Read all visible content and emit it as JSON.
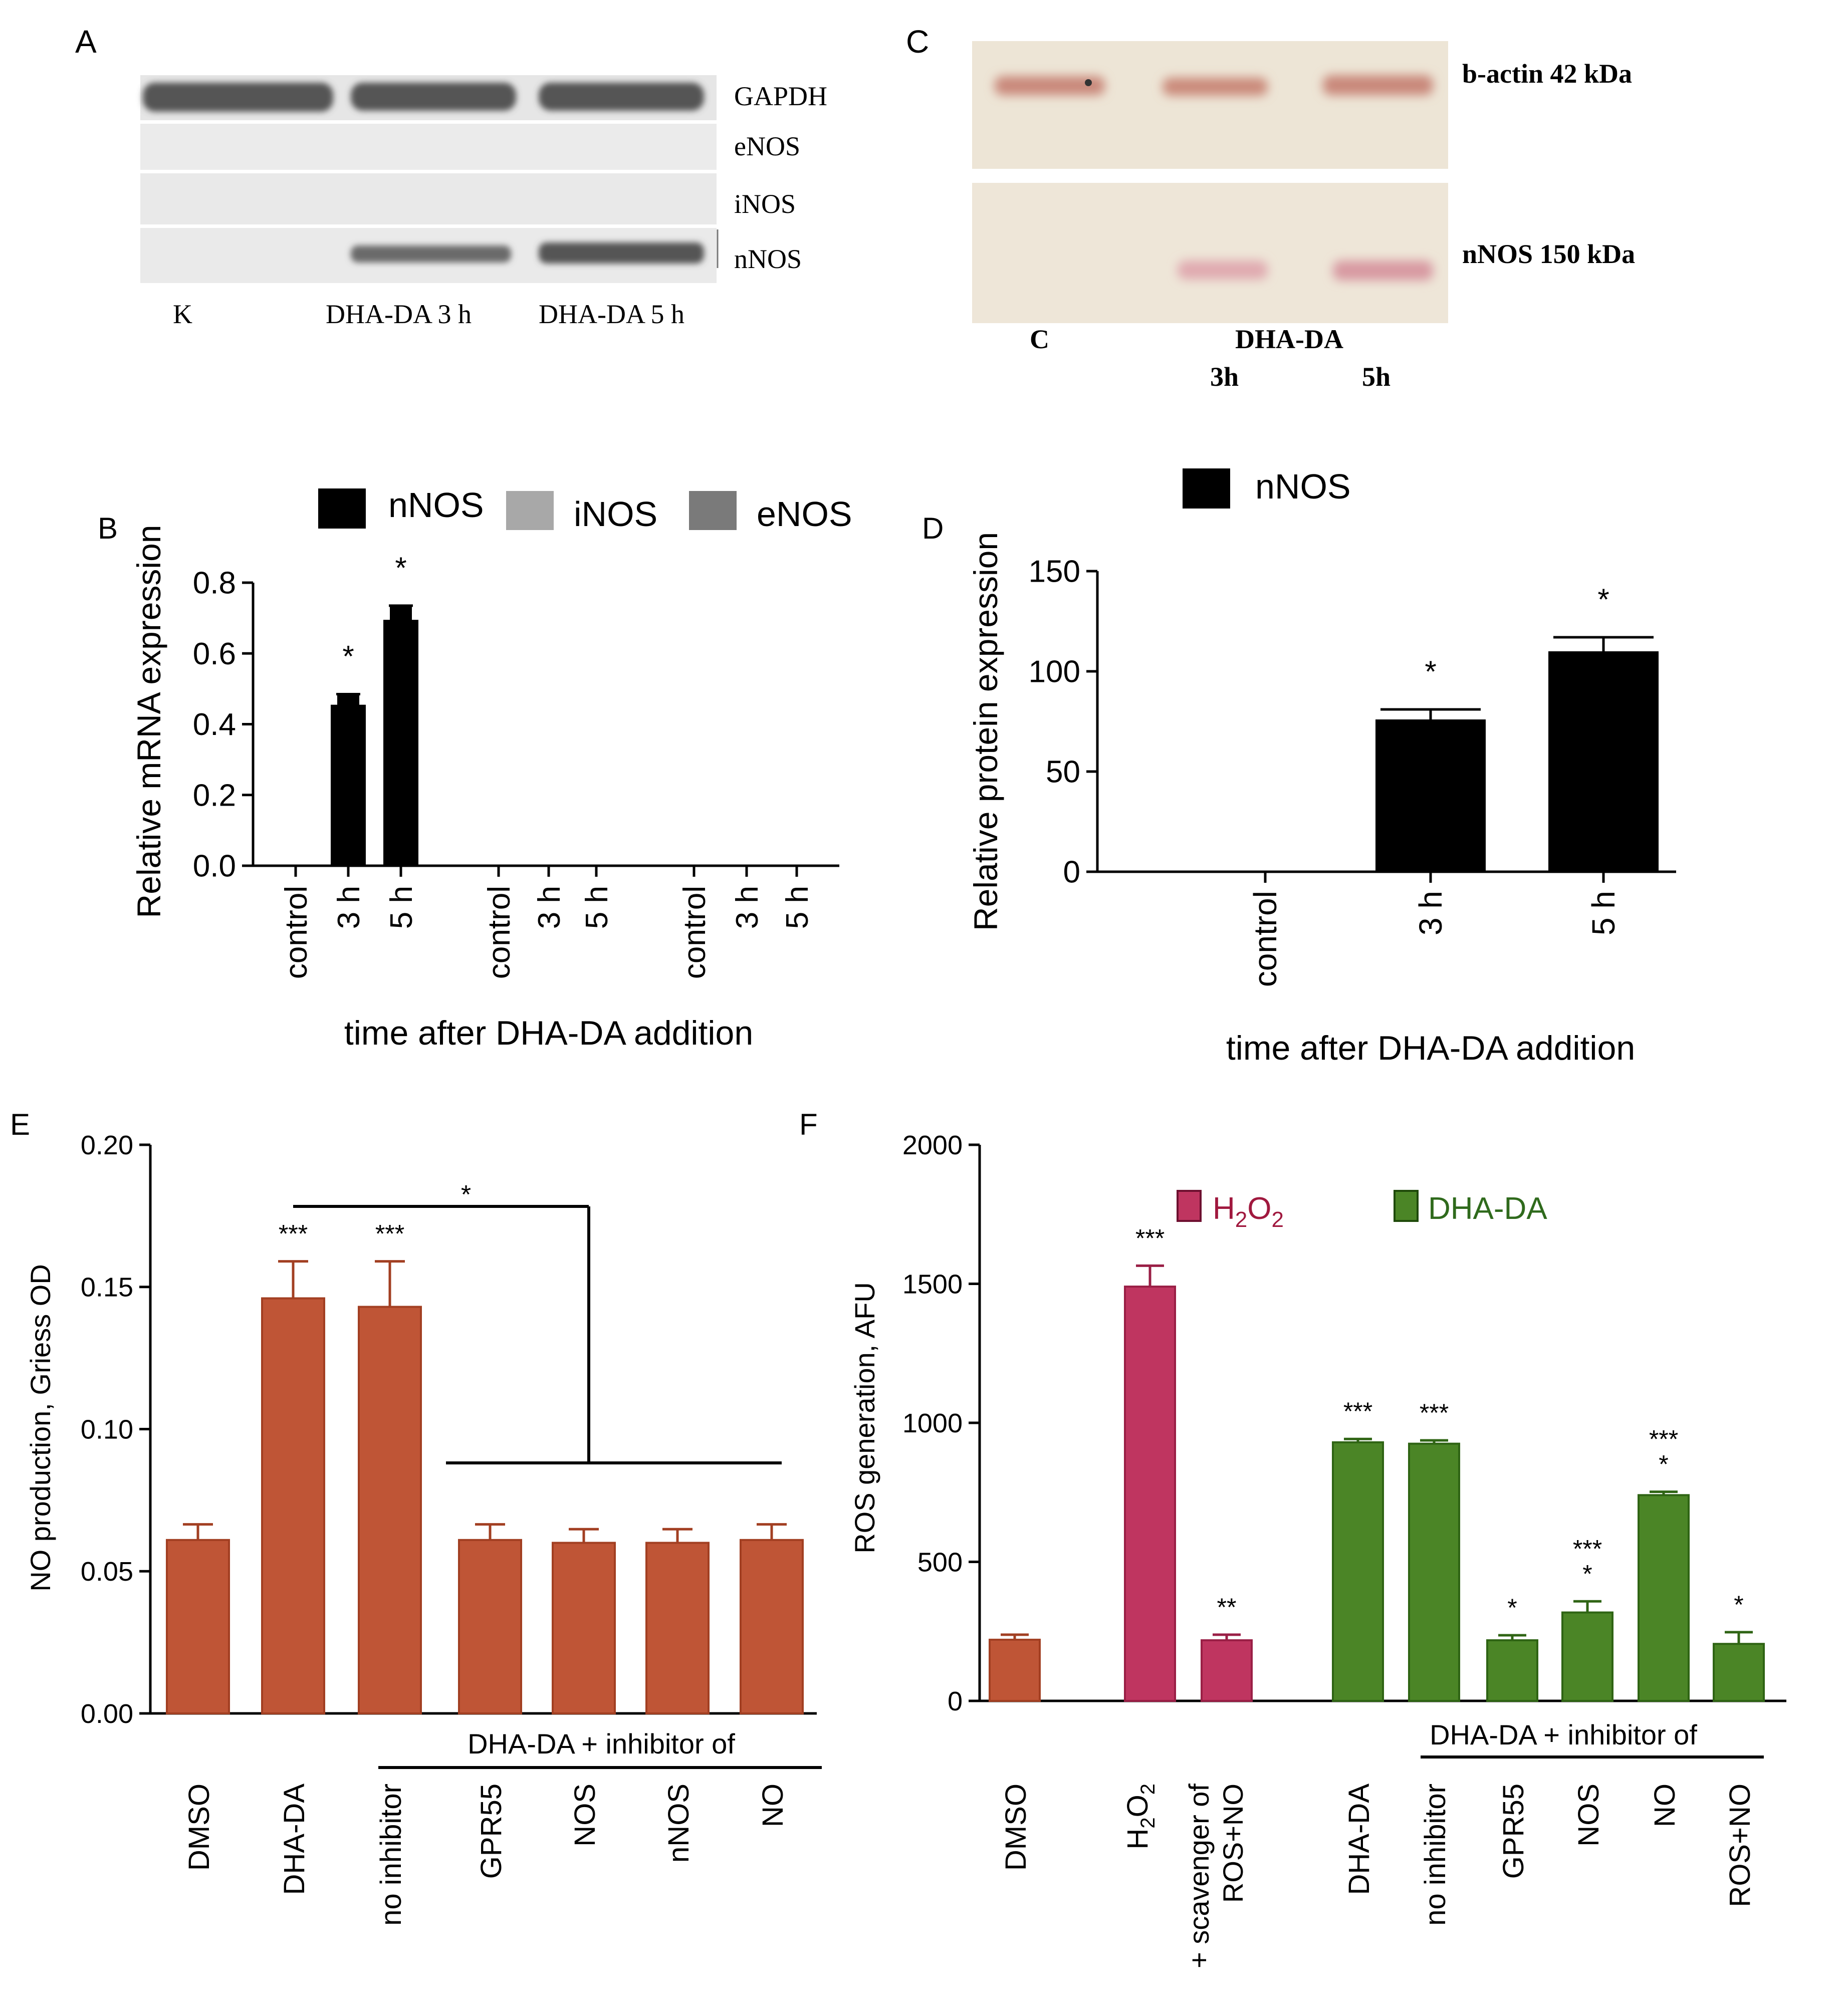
{
  "panel_labels": [
    "A",
    "B",
    "C",
    "D",
    "E",
    "F"
  ],
  "colors": {
    "black_bar": "#000000",
    "orange_bar": "#bf5536",
    "orange_edge": "#a23f22",
    "pink_bar": "#bf3560",
    "pink_edge": "#9a1f46",
    "green_bar": "#4b8526",
    "green_edge": "#2f6414",
    "iNOS_legend": "#a8a8a8",
    "eNOS_legend": "#7a7a7a",
    "blot_bg": "#e9e9e9",
    "blot_c_bg": "#eee6d8",
    "pink_text": "#a0183e",
    "green_text": "#2f6a1c"
  },
  "blot_A": {
    "lane_labels": [
      "K",
      "DHA-DA 3 h",
      "DHA-DA 5 h"
    ],
    "row_labels": [
      "GAPDH",
      "eNOS",
      "iNOS",
      "nNOS"
    ]
  },
  "blot_C": {
    "row_labels": [
      "b-actin 42 kDa",
      "nNOS 150 kDa"
    ],
    "lane_labels": [
      "C",
      "DHA-DA",
      "3h",
      "5h"
    ]
  },
  "chart_data": [
    {
      "panel": "B",
      "type": "bar",
      "ylabel": "Relative mRNA expression",
      "xlabel": "time after DHA-DA addition",
      "ylim": [
        0,
        0.8
      ],
      "yticks": [
        "0.0",
        "0.2",
        "0.4",
        "0.6",
        "0.8"
      ],
      "legend": [
        "nNOS",
        "iNOS",
        "eNOS"
      ],
      "groups": [
        {
          "series": "nNOS",
          "categories": [
            "control",
            "3 h",
            "5 h"
          ],
          "values": [
            0,
            0.455,
            0.695
          ],
          "errors": [
            0,
            0.03,
            0.04
          ],
          "marks": [
            "",
            "*",
            "*"
          ]
        },
        {
          "series": "iNOS",
          "categories": [
            "control",
            "3 h",
            "5 h"
          ],
          "values": [
            0,
            0,
            0
          ],
          "errors": [
            0,
            0,
            0
          ],
          "marks": [
            "",
            "",
            ""
          ]
        },
        {
          "series": "eNOS",
          "categories": [
            "control",
            "3 h",
            "5 h"
          ],
          "values": [
            0,
            0,
            0
          ],
          "errors": [
            0,
            0,
            0
          ],
          "marks": [
            "",
            "",
            ""
          ]
        }
      ]
    },
    {
      "panel": "D",
      "type": "bar",
      "ylabel": "Relative protein expression",
      "xlabel": "time after DHA-DA addition",
      "ylim": [
        0,
        150
      ],
      "yticks": [
        "0",
        "50",
        "100",
        "150"
      ],
      "legend": [
        "nNOS"
      ],
      "categories": [
        "control",
        "3 h",
        "5 h"
      ],
      "values": [
        0,
        76,
        110
      ],
      "errors": [
        0,
        5,
        7
      ],
      "marks": [
        "",
        "*",
        "*"
      ]
    },
    {
      "panel": "E",
      "type": "bar",
      "ylabel": "NO production, Griess OD",
      "ylim": [
        0,
        0.2
      ],
      "yticks": [
        "0.00",
        "0.05",
        "0.10",
        "0.15",
        "0.20"
      ],
      "categories": [
        "DMSO",
        "DHA-DA",
        "no inhibitor",
        "GPR55",
        "NOS",
        "nNOS",
        "NO"
      ],
      "values": [
        0.061,
        0.146,
        0.143,
        0.061,
        0.06,
        0.06,
        0.061
      ],
      "errors": [
        0.0055,
        0.013,
        0.016,
        0.0055,
        0.0048,
        0.0048,
        0.0055
      ],
      "marks": [
        "",
        "***",
        "***",
        "",
        "",
        "",
        ""
      ],
      "bracket_label": "*",
      "group_label": "DHA-DA + inhibitor of"
    },
    {
      "panel": "F",
      "type": "bar",
      "ylabel": "ROS generation, AFU",
      "ylim": [
        0,
        2000
      ],
      "yticks": [
        "0",
        "500",
        "1000",
        "1500",
        "2000"
      ],
      "legend": [
        {
          "name": "H",
          "sub": "2",
          "name2": "O",
          "sub2": "2"
        },
        {
          "name": "DHA-DA"
        }
      ],
      "categories": [
        "DMSO",
        "H2O2",
        "+ scavenger of ROS+NO",
        "DHA-DA",
        "no inhibitor",
        "GPR55",
        "NOS",
        "NO",
        "ROS+NO"
      ],
      "category_text": {
        "h2o2": [
          "H",
          "2",
          "O",
          "2"
        ],
        "scavenger_line1": "+ scavenger of",
        "scavenger_line2": "ROS+NO"
      },
      "values": [
        220,
        1490,
        218,
        930,
        925,
        218,
        318,
        740,
        205
      ],
      "errors": [
        18,
        75,
        20,
        12,
        12,
        18,
        40,
        12,
        42
      ],
      "colors": [
        "orange",
        "pink",
        "pink",
        "green",
        "green",
        "green",
        "green",
        "green",
        "green"
      ],
      "marks": [
        [],
        [
          "***"
        ],
        [
          "**"
        ],
        [
          "***"
        ],
        [
          "***"
        ],
        [
          "*"
        ],
        [
          "***",
          "*"
        ],
        [
          "***",
          "*"
        ],
        [
          "*"
        ]
      ],
      "group_label": "DHA-DA + inhibitor of"
    }
  ]
}
